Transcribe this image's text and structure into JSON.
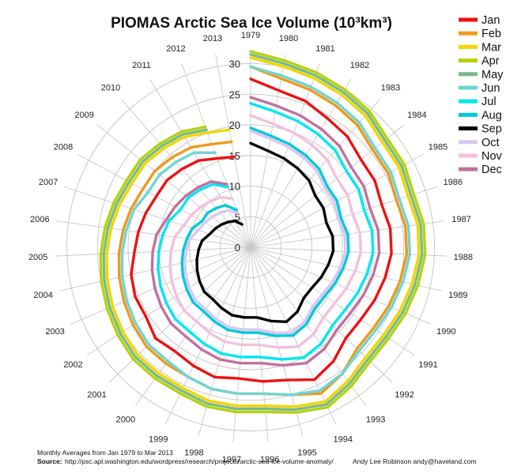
{
  "chart_data": {
    "type": "line",
    "subtype": "polar",
    "title": "PIOMAS Arctic Sea Ice Volume (10³km³)",
    "radial_ticks": [
      0,
      5,
      10,
      15,
      20,
      25,
      30
    ],
    "radial_max": 32,
    "years": [
      "1979",
      "1980",
      "1981",
      "1982",
      "1983",
      "1984",
      "1985",
      "1986",
      "1987",
      "1988",
      "1989",
      "1990",
      "1991",
      "1992",
      "1993",
      "1994",
      "1995",
      "1996",
      "1997",
      "1998",
      "1999",
      "2000",
      "2001",
      "2002",
      "2003",
      "2004",
      "2005",
      "2006",
      "2007",
      "2008",
      "2009",
      "2010",
      "2011",
      "2012",
      "2013"
    ],
    "series": [
      {
        "name": "Jan",
        "color": "#ee1111",
        "values": [
          27.5,
          26.0,
          25.5,
          24.5,
          24.0,
          23.0,
          23.0,
          22.5,
          23.0,
          23.0,
          22.5,
          22.0,
          21.5,
          21.5,
          23.0,
          24.0,
          22.5,
          22.0,
          21.5,
          22.0,
          21.5,
          21.0,
          21.5,
          20.5,
          20.5,
          20.0,
          19.0,
          18.5,
          18.0,
          17.5,
          17.5,
          17.0,
          16.5,
          15.5,
          15.0
        ]
      },
      {
        "name": "Feb",
        "color": "#f0991c",
        "values": [
          29.5,
          28.0,
          27.5,
          27.0,
          26.5,
          25.5,
          25.5,
          25.0,
          25.5,
          25.5,
          25.0,
          24.5,
          24.0,
          24.0,
          25.5,
          26.5,
          25.0,
          24.0,
          24.0,
          24.0,
          23.5,
          23.5,
          23.5,
          23.0,
          22.5,
          22.0,
          21.5,
          21.0,
          20.5,
          20.0,
          20.0,
          19.5,
          19.0,
          18.0,
          17.5
        ]
      },
      {
        "name": "Mar",
        "color": "#f2d500",
        "values": [
          31.0,
          30.0,
          29.5,
          29.0,
          28.5,
          27.5,
          27.5,
          27.0,
          27.5,
          27.5,
          27.0,
          26.5,
          26.0,
          26.0,
          27.0,
          28.0,
          27.0,
          26.0,
          26.0,
          26.0,
          25.5,
          25.5,
          25.5,
          25.0,
          24.5,
          24.0,
          23.5,
          23.0,
          22.5,
          22.0,
          22.0,
          21.5,
          21.0,
          20.0,
          19.5
        ]
      },
      {
        "name": "Apr",
        "color": "#b5d20e",
        "values": [
          32.0,
          31.0,
          30.5,
          30.0,
          29.5,
          28.5,
          28.5,
          28.0,
          28.5,
          28.5,
          28.0,
          27.5,
          27.0,
          27.0,
          28.0,
          29.0,
          28.0,
          27.0,
          27.0,
          27.0,
          26.5,
          26.5,
          26.5,
          26.0,
          25.5,
          25.0,
          24.5,
          24.0,
          23.5,
          23.0,
          23.0,
          22.5,
          22.0,
          21.0,
          null
        ]
      },
      {
        "name": "May",
        "color": "#77bb88",
        "values": [
          31.5,
          30.5,
          30.0,
          29.5,
          29.0,
          28.0,
          28.0,
          27.5,
          28.0,
          28.0,
          27.5,
          27.0,
          26.5,
          26.5,
          27.5,
          28.5,
          27.5,
          26.5,
          26.5,
          26.5,
          26.0,
          26.0,
          26.0,
          25.5,
          25.0,
          24.5,
          24.0,
          23.5,
          23.0,
          22.5,
          22.5,
          22.0,
          21.5,
          20.5,
          null
        ]
      },
      {
        "name": "Jun",
        "color": "#70d4d4",
        "values": [
          29.5,
          28.5,
          28.0,
          27.5,
          27.0,
          26.0,
          26.0,
          25.5,
          26.0,
          26.0,
          25.5,
          25.0,
          24.5,
          24.5,
          25.5,
          26.0,
          25.0,
          24.0,
          24.0,
          24.0,
          23.5,
          23.0,
          23.0,
          22.5,
          22.0,
          21.5,
          21.0,
          20.5,
          20.0,
          19.0,
          19.0,
          18.5,
          18.0,
          16.5,
          null
        ]
      },
      {
        "name": "Jul",
        "color": "#00e6f2",
        "values": [
          23.5,
          22.5,
          22.0,
          21.5,
          21.0,
          20.0,
          20.0,
          19.5,
          20.0,
          20.0,
          19.5,
          19.0,
          18.5,
          18.5,
          19.5,
          20.0,
          19.0,
          18.0,
          18.0,
          18.0,
          17.5,
          17.0,
          17.0,
          16.5,
          16.0,
          15.5,
          15.0,
          14.5,
          14.0,
          13.0,
          13.0,
          12.5,
          12.0,
          10.5,
          null
        ]
      },
      {
        "name": "Aug",
        "color": "#00c8dc",
        "values": [
          19.5,
          18.5,
          18.0,
          17.5,
          17.0,
          16.0,
          16.0,
          15.5,
          16.0,
          16.0,
          15.5,
          15.0,
          14.5,
          14.5,
          15.5,
          16.0,
          15.0,
          14.0,
          14.0,
          14.0,
          13.5,
          13.0,
          13.0,
          12.5,
          12.0,
          11.5,
          11.0,
          10.5,
          10.0,
          9.0,
          9.0,
          8.5,
          8.0,
          6.5,
          null
        ]
      },
      {
        "name": "Sep",
        "color": "#000000",
        "values": [
          17.0,
          16.0,
          15.5,
          15.0,
          14.5,
          13.5,
          13.5,
          13.0,
          13.5,
          13.5,
          13.0,
          12.5,
          12.0,
          12.0,
          13.0,
          13.5,
          12.5,
          11.5,
          11.5,
          11.5,
          11.0,
          10.5,
          10.5,
          10.0,
          9.5,
          9.0,
          8.5,
          8.0,
          7.0,
          6.5,
          6.0,
          5.5,
          5.0,
          4.0,
          null
        ]
      },
      {
        "name": "Oct",
        "color": "#d8c8ef",
        "values": [
          19.0,
          18.0,
          17.5,
          17.0,
          16.5,
          15.5,
          15.5,
          15.0,
          15.5,
          15.5,
          15.0,
          14.5,
          14.0,
          14.0,
          15.0,
          15.5,
          14.5,
          13.5,
          13.5,
          13.5,
          13.0,
          12.5,
          12.5,
          12.0,
          11.5,
          11.0,
          10.5,
          10.0,
          9.0,
          8.5,
          8.0,
          7.5,
          7.0,
          6.0,
          null
        ]
      },
      {
        "name": "Nov",
        "color": "#f2c0dc",
        "values": [
          21.5,
          20.5,
          20.0,
          19.5,
          19.0,
          18.0,
          18.0,
          17.5,
          18.0,
          18.0,
          17.5,
          17.0,
          16.5,
          16.5,
          17.5,
          18.0,
          17.0,
          16.0,
          16.0,
          16.0,
          15.5,
          15.0,
          15.0,
          14.5,
          14.0,
          13.5,
          13.0,
          12.5,
          11.5,
          11.0,
          10.5,
          10.0,
          9.5,
          8.5,
          null
        ]
      },
      {
        "name": "Dec",
        "color": "#c071a0",
        "values": [
          24.5,
          23.5,
          23.0,
          22.5,
          22.0,
          21.0,
          21.0,
          20.5,
          21.0,
          21.0,
          20.5,
          20.0,
          19.5,
          19.5,
          20.5,
          21.0,
          20.0,
          19.0,
          19.0,
          19.0,
          18.5,
          18.0,
          18.0,
          17.5,
          17.0,
          16.5,
          16.0,
          15.5,
          14.5,
          14.0,
          13.5,
          13.0,
          12.5,
          11.0,
          null
        ]
      }
    ]
  },
  "footer": {
    "line1": "Monthly Averages from Jan 1979 to Mar 2013",
    "source_label": "Source:",
    "source_url": "http://psc.apl.washington.edu/wordpress/research/projects/arctic-sea-ice-volume-anomaly/",
    "credit": "Andy Lee Robinson andy@haveland.com"
  }
}
